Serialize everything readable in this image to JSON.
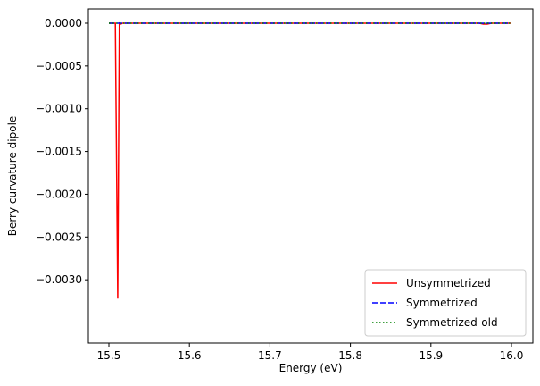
{
  "chart_data": {
    "type": "line",
    "xlabel": "Energy (eV)",
    "ylabel": "Berry curvature dipole",
    "x": [
      15.5,
      15.508,
      15.511,
      15.513,
      15.515,
      15.517,
      15.52,
      15.96,
      15.965,
      15.97,
      15.975,
      16.0
    ],
    "series": [
      {
        "name": "Unsymmetrized",
        "color": "#ff0000",
        "dash": "solid",
        "values": [
          0,
          0,
          -0.00322,
          0,
          -1e-05,
          0,
          0,
          0,
          -1e-05,
          -1e-05,
          0,
          0
        ]
      },
      {
        "name": "Symmetrized",
        "color": "#0000ff",
        "dash": "dashed",
        "values": [
          0,
          0,
          0,
          0,
          0,
          0,
          0,
          0,
          0,
          0,
          0,
          0
        ]
      },
      {
        "name": "Symmetrized-old",
        "color": "#008000",
        "dash": "dotted",
        "values": [
          0,
          0,
          0,
          0,
          0,
          0,
          0,
          0,
          0,
          0,
          0,
          0
        ]
      }
    ],
    "xlim": [
      15.4745,
      16.0266
    ],
    "ylim": [
      -0.00374,
      0.000167
    ],
    "xticks": [
      15.5,
      15.6,
      15.7,
      15.8,
      15.9,
      {
        "value": 16,
        "label": "16.0"
      }
    ],
    "yticks": [
      {
        "value": 0,
        "label": "0.0000"
      },
      {
        "value": -0.0005,
        "label": "−0.0005"
      },
      {
        "value": -0.001,
        "label": "−0.0010"
      },
      {
        "value": -0.0015,
        "label": "−0.0015"
      },
      {
        "value": -0.002,
        "label": "−0.0020"
      },
      {
        "value": -0.0025,
        "label": "−0.0025"
      },
      {
        "value": -0.003,
        "label": "−0.0030"
      }
    ],
    "legend": "lower right",
    "grid": false
  }
}
